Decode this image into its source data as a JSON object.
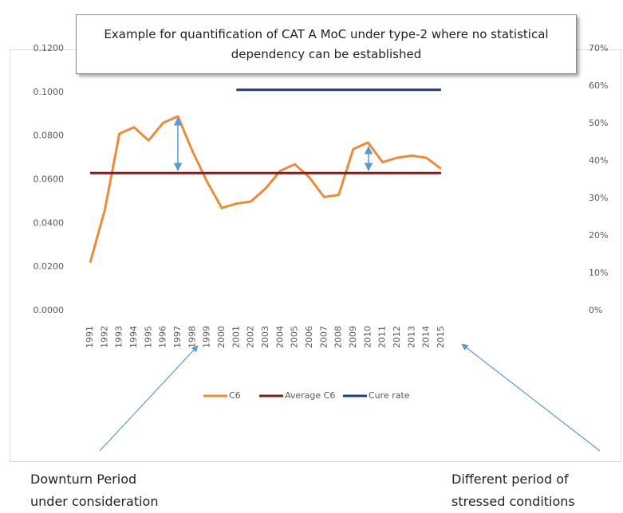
{
  "chart_data": {
    "type": "line",
    "title": "Example for quantification of CAT A MoC under type-2 where no statistical dependency can be established",
    "categories": [
      "1991",
      "1992",
      "1993",
      "1994",
      "1995",
      "1996",
      "1997",
      "1998",
      "1999",
      "2000",
      "2001",
      "2002",
      "2003",
      "2004",
      "2005",
      "2006",
      "2007",
      "2008",
      "2009",
      "2010",
      "2011",
      "2012",
      "2013",
      "2014",
      "2015"
    ],
    "series": [
      {
        "name": "C6",
        "color": "#ed8b3a",
        "values": [
          0.022,
          0.046,
          0.081,
          0.084,
          0.078,
          0.086,
          0.089,
          0.073,
          0.059,
          0.047,
          0.049,
          0.05,
          0.056,
          0.064,
          0.067,
          0.061,
          0.052,
          0.053,
          0.074,
          0.077,
          0.068,
          0.07,
          0.071,
          0.07,
          0.065
        ]
      },
      {
        "name": "Average C6",
        "color": "#7b1f1f",
        "values": [
          0.063,
          0.063,
          0.063,
          0.063,
          0.063,
          0.063,
          0.063,
          0.063,
          0.063,
          0.063,
          0.063,
          0.063,
          0.063,
          0.063,
          0.063,
          0.063,
          0.063,
          0.063,
          0.063,
          0.063,
          0.063,
          0.063,
          0.063,
          0.063,
          0.063
        ]
      },
      {
        "name": "Cure rate",
        "color": "#1f3f77",
        "axis": "y2",
        "values": [
          null,
          null,
          null,
          null,
          null,
          null,
          null,
          null,
          null,
          null,
          59,
          59,
          59,
          59,
          59,
          59,
          59,
          59,
          59,
          59,
          59,
          59,
          59,
          59,
          59
        ]
      }
    ],
    "ylim": [
      0,
      0.12
    ],
    "yticks": [
      {
        "value": 0,
        "label": "0.0000"
      },
      {
        "value": 0.02,
        "label": "0.0200"
      },
      {
        "value": 0.04,
        "label": "0.0400"
      },
      {
        "value": 0.06,
        "label": "0.0600"
      },
      {
        "value": 0.08,
        "label": "0.0800"
      },
      {
        "value": 0.1,
        "label": "0.1000"
      },
      {
        "value": 0.12,
        "label": "0.1200"
      }
    ],
    "y2lim": [
      0,
      70
    ],
    "y2ticks": [
      {
        "value": 0,
        "label": "0%"
      },
      {
        "value": 10,
        "label": "10%"
      },
      {
        "value": 20,
        "label": "20%"
      },
      {
        "value": 30,
        "label": "30%"
      },
      {
        "value": 40,
        "label": "40%"
      },
      {
        "value": 50,
        "label": "50%"
      },
      {
        "value": 60,
        "label": "60%"
      },
      {
        "value": 70,
        "label": "70%"
      }
    ],
    "grid": false,
    "legend": "bottom",
    "annotations": [
      "Downturn Period under consideration",
      "Different period of stressed conditions"
    ]
  }
}
